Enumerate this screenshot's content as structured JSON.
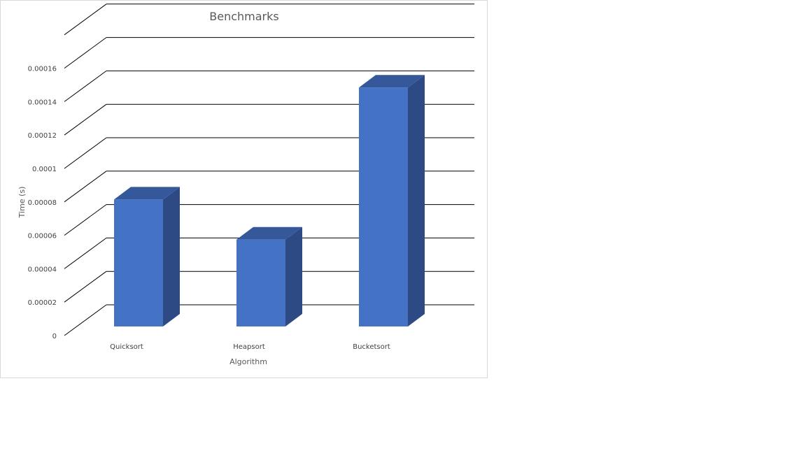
{
  "chart_data": {
    "type": "bar",
    "style": "3d-column",
    "title": "Benchmarks",
    "xlabel": "Algorithm",
    "ylabel": "Time (s)",
    "categories": [
      "Quicksort",
      "Heapsort",
      "Bucketsort"
    ],
    "series": [
      {
        "values": [
          7.6e-05,
          5.2e-05,
          0.000143
        ]
      }
    ],
    "ylim": [
      0,
      0.00018
    ],
    "yticks": [
      "0",
      "0.00002",
      "0.00004",
      "0.00006",
      "0.00008",
      "0.0001",
      "0.00012",
      "0.00014",
      "0.00016"
    ],
    "grid": true,
    "legend": "none",
    "colors": {
      "bar_front": "#4472c4",
      "bar_side": "#2e4a85",
      "bar_top": "#35589a",
      "gridline": "#000000",
      "frame_border": "#d9d9d9"
    }
  }
}
